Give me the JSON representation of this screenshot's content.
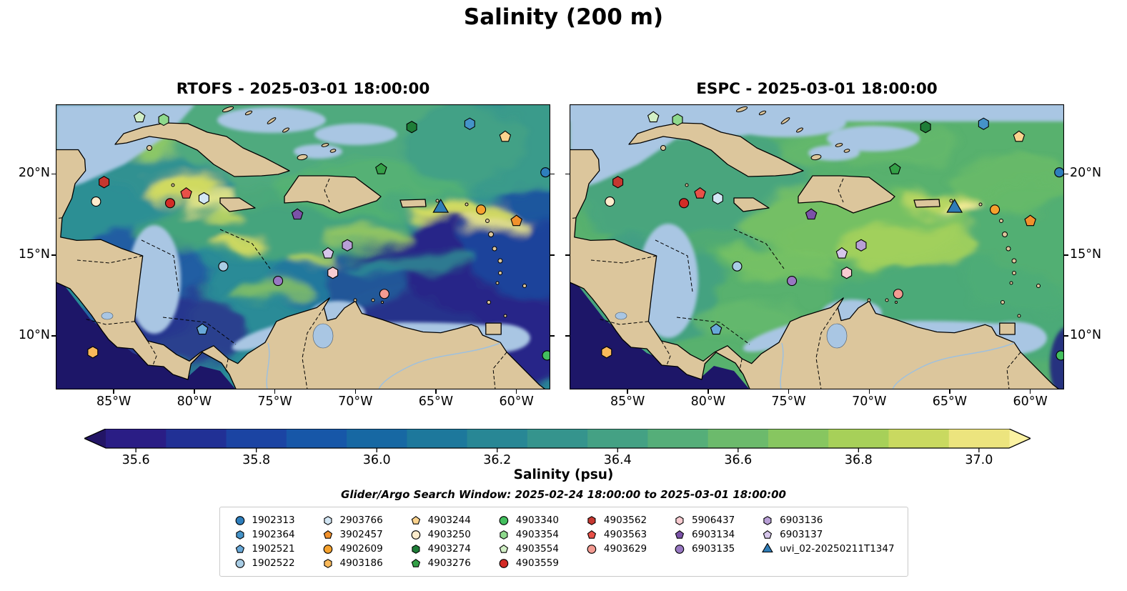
{
  "figure": {
    "title": "Salinity (200 m)",
    "panels": [
      {
        "id": "rtofs",
        "title": "RTOFS - 2025-03-01 18:00:00"
      },
      {
        "id": "espc",
        "title": "ESPC - 2025-03-01 18:00:00"
      }
    ],
    "axes": {
      "lon_tick_labels": [
        "85°W",
        "80°W",
        "75°W",
        "70°W",
        "65°W",
        "60°W"
      ],
      "lon_tick_values": [
        -85,
        -80,
        -75,
        -70,
        -65,
        -60
      ],
      "lat_tick_labels": [
        "20°N",
        "15°N",
        "10°N"
      ],
      "lat_tick_values": [
        20,
        15,
        10
      ],
      "lon_range": [
        -88.6,
        -57.9
      ],
      "lat_range": [
        6.7,
        24.3
      ]
    },
    "colorbar": {
      "label": "Salinity (psu)",
      "tick_labels": [
        "35.6",
        "35.8",
        "36.0",
        "36.2",
        "36.4",
        "36.6",
        "36.8",
        "37.0"
      ],
      "tick_values": [
        35.6,
        35.8,
        36.0,
        36.2,
        36.4,
        36.6,
        36.8,
        37.0
      ],
      "vmin": 35.55,
      "vmax": 37.05,
      "segment_colors": [
        "#2a1d85",
        "#213095",
        "#1b44a3",
        "#1757a8",
        "#1768a3",
        "#1d789c",
        "#288795",
        "#35948d",
        "#44a184",
        "#55ae79",
        "#6cba6c",
        "#87c660",
        "#a7d059",
        "#c9d960",
        "#ece47e"
      ],
      "under_color": "#231566",
      "over_color": "#fbf2a2"
    },
    "search_window_text": "Glider/Argo Search Window: 2025-02-24 18:00:00 to 2025-03-01 18:00:00",
    "map_colors": {
      "land": "#dcc69c",
      "shallow_nodata": "#a9c6e3",
      "coastline": "#000000",
      "deep_low_salinity": "#1d1668"
    }
  },
  "chart_data": {
    "type": "heatmap",
    "title": "Salinity (200 m)",
    "variable": "Salinity",
    "units": "psu",
    "depth_m": 200,
    "subplots": [
      {
        "model": "RTOFS",
        "valid_time": "2025-03-01 18:00:00"
      },
      {
        "model": "ESPC",
        "valid_time": "2025-03-01 18:00:00"
      }
    ],
    "search_window": {
      "start": "2025-02-24 18:00:00",
      "end": "2025-03-01 18:00:00"
    },
    "colorbar": {
      "label": "Salinity (psu)",
      "ticks": [
        35.6,
        35.8,
        36.0,
        36.2,
        36.4,
        36.6,
        36.8,
        37.0
      ],
      "vmin": 35.55,
      "vmax": 37.05
    },
    "lon_ticks_deg": [
      -85,
      -80,
      -75,
      -70,
      -65,
      -60
    ],
    "lat_ticks_deg": [
      20,
      15,
      10
    ],
    "platforms": [
      {
        "label": "1902313",
        "marker": "circle",
        "color": "#2e7ebc",
        "lon": -58.2,
        "lat": 20.1
      },
      {
        "label": "1902364",
        "marker": "hexagon",
        "color": "#4593c8",
        "lon": -62.9,
        "lat": 23.1
      },
      {
        "label": "1902521",
        "marker": "pentagon",
        "color": "#68a8d8",
        "lon": -79.5,
        "lat": 10.4
      },
      {
        "label": "1902522",
        "marker": "circle",
        "color": "#a8cce4",
        "lon": -78.2,
        "lat": 14.3
      },
      {
        "label": "2903766",
        "marker": "hexagon",
        "color": "#d2e6f4",
        "lon": -79.4,
        "lat": 18.5
      },
      {
        "label": "3902457",
        "marker": "pentagon",
        "color": "#f1912c",
        "lon": -60.0,
        "lat": 17.1
      },
      {
        "label": "4902609",
        "marker": "circle",
        "color": "#f6a22e",
        "lon": -62.2,
        "lat": 17.8
      },
      {
        "label": "4903186",
        "marker": "hexagon",
        "color": "#f9b95a",
        "lon": -86.3,
        "lat": 9.0
      },
      {
        "label": "4903244",
        "marker": "pentagon",
        "color": "#fbd38e",
        "lon": -60.7,
        "lat": 22.3
      },
      {
        "label": "4903250",
        "marker": "circle",
        "color": "#fdeccc",
        "lon": -86.1,
        "lat": 18.3
      },
      {
        "label": "4903274",
        "marker": "hexagon",
        "color": "#1e7d37",
        "lon": -66.5,
        "lat": 22.9
      },
      {
        "label": "4903276",
        "marker": "pentagon",
        "color": "#34a047",
        "lon": -68.4,
        "lat": 20.3
      },
      {
        "label": "4903340",
        "marker": "circle",
        "color": "#43bf5e",
        "lon": -58.1,
        "lat": 8.8
      },
      {
        "label": "4903354",
        "marker": "hexagon",
        "color": "#8ed98c",
        "lon": -81.9,
        "lat": 23.35
      },
      {
        "label": "4903554",
        "marker": "pentagon",
        "color": "#d2efc6",
        "lon": -83.4,
        "lat": 23.5
      },
      {
        "label": "4903559",
        "marker": "circle",
        "color": "#d32b26",
        "lon": -81.5,
        "lat": 18.2
      },
      {
        "label": "4903562",
        "marker": "hexagon",
        "color": "#c63730",
        "lon": -85.6,
        "lat": 19.5
      },
      {
        "label": "4903563",
        "marker": "pentagon",
        "color": "#e85048",
        "lon": -80.5,
        "lat": 18.8
      },
      {
        "label": "4903629",
        "marker": "circle",
        "color": "#f39b92",
        "lon": -68.2,
        "lat": 12.6
      },
      {
        "label": "5906437",
        "marker": "hexagon",
        "color": "#f8ccd1",
        "lon": -71.4,
        "lat": 13.9
      },
      {
        "label": "6903134",
        "marker": "pentagon",
        "color": "#7b52a8",
        "lon": -73.6,
        "lat": 17.5
      },
      {
        "label": "6903135",
        "marker": "circle",
        "color": "#9878c2",
        "lon": -74.8,
        "lat": 13.4
      },
      {
        "label": "6903136",
        "marker": "hexagon",
        "color": "#b89fd6",
        "lon": -70.5,
        "lat": 15.6
      },
      {
        "label": "6903137",
        "marker": "pentagon",
        "color": "#d6c6ea",
        "lon": -71.7,
        "lat": 15.1
      },
      {
        "label": "uvi_02-20250211T1347",
        "marker": "triangle",
        "color": "#2f7cb6",
        "lon": -64.7,
        "lat": 17.9
      }
    ]
  }
}
